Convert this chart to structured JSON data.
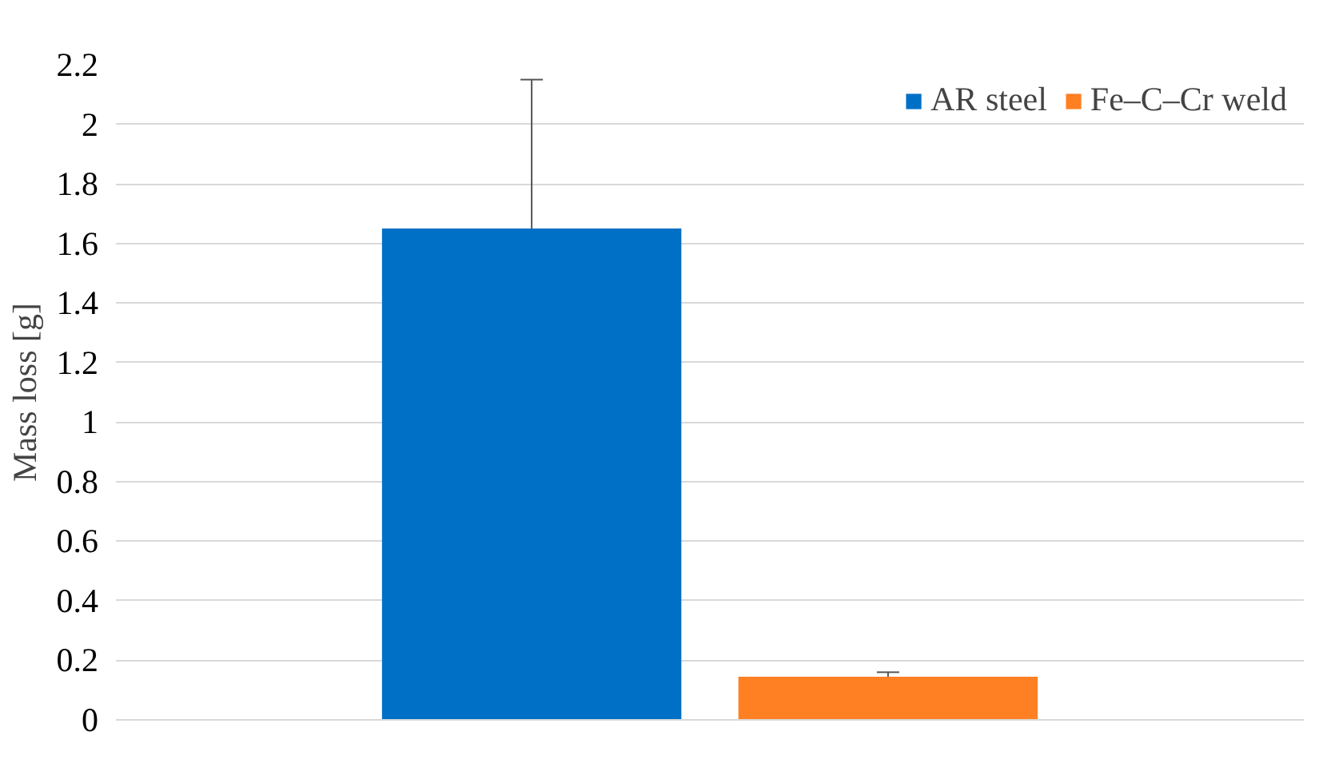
{
  "chart_data": {
    "type": "bar",
    "ylabel": "Mass loss [g]",
    "categories": [
      null
    ],
    "series": [
      {
        "name": "AR steel",
        "color": "#0070c6",
        "values": [
          1.65
        ],
        "errors": [
          0.5
        ]
      },
      {
        "name": "Fe–C–Cr weld",
        "color": "#fe8022",
        "values": [
          0.145
        ],
        "errors": [
          0.015
        ]
      }
    ],
    "ylim": [
      0,
      2.2
    ],
    "yticks": [
      0,
      0.2,
      0.4,
      0.6,
      0.8,
      1,
      1.2,
      1.4,
      1.6,
      1.8,
      2,
      2.2
    ],
    "grid": "y",
    "legend": "top right"
  }
}
